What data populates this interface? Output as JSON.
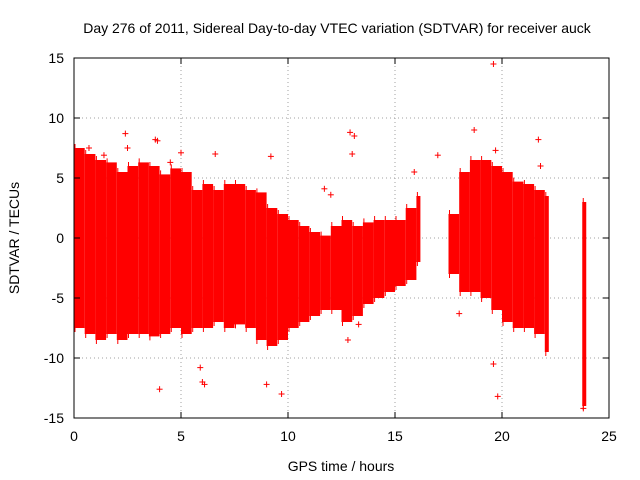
{
  "chart_data": {
    "type": "scatter",
    "title": "Day 276 of 2011, Sidereal Day-to-day VTEC variation (SDTVAR) for receiver auck",
    "xlabel": "GPS time / hours",
    "ylabel": "SDTVAR / TECUs",
    "xlim": [
      0,
      25
    ],
    "ylim": [
      -15,
      15
    ],
    "xticks": [
      0,
      5,
      10,
      15,
      20,
      25
    ],
    "yticks": [
      -15,
      -10,
      -5,
      0,
      5,
      10,
      15
    ],
    "grid": true,
    "marker": "+",
    "color": "#ff0000",
    "series": [
      {
        "name": "SDTVAR",
        "segments": [
          {
            "x": 0.0,
            "lo": -7.5,
            "hi": 7.5
          },
          {
            "x": 0.5,
            "lo": -8.0,
            "hi": 7.0
          },
          {
            "x": 1.0,
            "lo": -8.5,
            "hi": 6.5
          },
          {
            "x": 1.5,
            "lo": -8.0,
            "hi": 6.3
          },
          {
            "x": 2.0,
            "lo": -8.5,
            "hi": 5.5
          },
          {
            "x": 2.5,
            "lo": -8.0,
            "hi": 6.0
          },
          {
            "x": 3.0,
            "lo": -8.0,
            "hi": 6.3
          },
          {
            "x": 3.5,
            "lo": -8.2,
            "hi": 6.0
          },
          {
            "x": 4.0,
            "lo": -8.0,
            "hi": 5.3
          },
          {
            "x": 4.5,
            "lo": -7.5,
            "hi": 5.8
          },
          {
            "x": 5.0,
            "lo": -8.0,
            "hi": 5.5
          },
          {
            "x": 5.5,
            "lo": -7.5,
            "hi": 4.0
          },
          {
            "x": 6.0,
            "lo": -7.5,
            "hi": 4.5
          },
          {
            "x": 6.5,
            "lo": -7.0,
            "hi": 4.0
          },
          {
            "x": 7.0,
            "lo": -7.5,
            "hi": 4.5
          },
          {
            "x": 7.5,
            "lo": -7.2,
            "hi": 4.5
          },
          {
            "x": 8.0,
            "lo": -7.5,
            "hi": 4.0
          },
          {
            "x": 8.5,
            "lo": -8.5,
            "hi": 3.8
          },
          {
            "x": 9.0,
            "lo": -9.0,
            "hi": 2.5
          },
          {
            "x": 9.5,
            "lo": -8.5,
            "hi": 2.0
          },
          {
            "x": 10.0,
            "lo": -7.5,
            "hi": 1.5
          },
          {
            "x": 10.5,
            "lo": -7.0,
            "hi": 1.0
          },
          {
            "x": 11.0,
            "lo": -6.5,
            "hi": 0.5
          },
          {
            "x": 11.5,
            "lo": -6.0,
            "hi": 0.2
          },
          {
            "x": 12.0,
            "lo": -6.0,
            "hi": 1.0
          },
          {
            "x": 12.5,
            "lo": -7.0,
            "hi": 1.5
          },
          {
            "x": 13.0,
            "lo": -6.5,
            "hi": 1.0
          },
          {
            "x": 13.5,
            "lo": -5.5,
            "hi": 1.3
          },
          {
            "x": 14.0,
            "lo": -5.0,
            "hi": 1.5
          },
          {
            "x": 14.5,
            "lo": -4.5,
            "hi": 1.5
          },
          {
            "x": 15.0,
            "lo": -4.0,
            "hi": 1.5
          },
          {
            "x": 15.5,
            "lo": -3.5,
            "hi": 2.5
          },
          {
            "x": 16.0,
            "lo": -2.0,
            "hi": 3.5
          },
          {
            "x": 17.5,
            "lo": -3.0,
            "hi": 2.0
          },
          {
            "x": 18.0,
            "lo": -4.5,
            "hi": 5.5
          },
          {
            "x": 18.5,
            "lo": -4.5,
            "hi": 6.5
          },
          {
            "x": 19.0,
            "lo": -5.0,
            "hi": 6.5
          },
          {
            "x": 19.5,
            "lo": -6.0,
            "hi": 6.0
          },
          {
            "x": 20.0,
            "lo": -7.0,
            "hi": 5.5
          },
          {
            "x": 20.5,
            "lo": -7.5,
            "hi": 4.7
          },
          {
            "x": 21.0,
            "lo": -7.5,
            "hi": 4.5
          },
          {
            "x": 21.5,
            "lo": -8.0,
            "hi": 4.0
          },
          {
            "x": 22.0,
            "lo": -9.5,
            "hi": 3.5
          },
          {
            "x": 23.75,
            "lo": -14.0,
            "hi": 3.0
          }
        ],
        "outliers": [
          [
            0.7,
            7.5
          ],
          [
            1.4,
            6.9
          ],
          [
            2.4,
            8.7
          ],
          [
            2.5,
            7.5
          ],
          [
            3.8,
            8.2
          ],
          [
            3.9,
            8.1
          ],
          [
            4.0,
            -12.6
          ],
          [
            4.5,
            6.3
          ],
          [
            5.0,
            7.1
          ],
          [
            5.9,
            -10.8
          ],
          [
            6.0,
            -12.0
          ],
          [
            6.1,
            -12.2
          ],
          [
            6.6,
            7.0
          ],
          [
            9.2,
            -8.6
          ],
          [
            9.0,
            -12.2
          ],
          [
            9.7,
            -13.0
          ],
          [
            9.2,
            6.8
          ],
          [
            11.7,
            4.1
          ],
          [
            12.0,
            3.6
          ],
          [
            12.9,
            8.8
          ],
          [
            13.1,
            8.5
          ],
          [
            13.0,
            7.0
          ],
          [
            12.8,
            -8.5
          ],
          [
            13.3,
            -7.2
          ],
          [
            15.9,
            5.5
          ],
          [
            17.0,
            6.9
          ],
          [
            18.0,
            -6.3
          ],
          [
            18.7,
            9.0
          ],
          [
            19.6,
            14.5
          ],
          [
            19.7,
            7.3
          ],
          [
            19.6,
            -10.5
          ],
          [
            19.8,
            -13.2
          ],
          [
            21.7,
            8.2
          ],
          [
            21.8,
            6.0
          ],
          [
            23.8,
            -14.2
          ]
        ]
      }
    ]
  }
}
